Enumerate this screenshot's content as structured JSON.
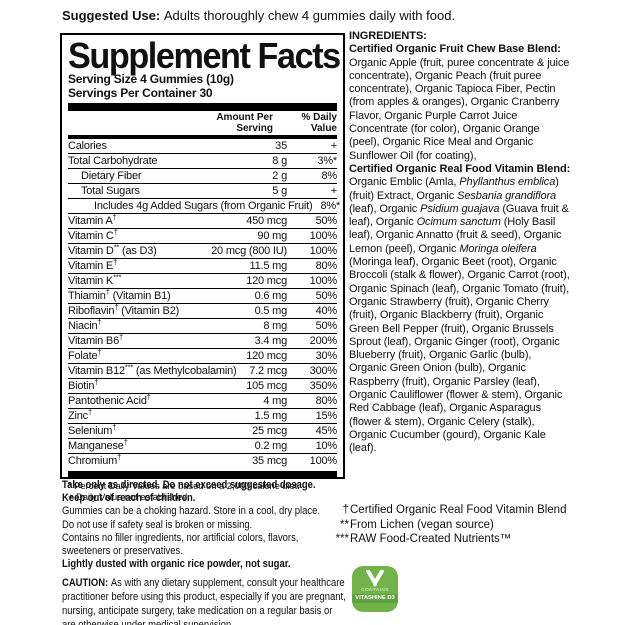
{
  "colors": {
    "text": "#111111",
    "panel_border": "#000000",
    "badge_green": "#71b348",
    "badge_band": "#5fa23d"
  },
  "suggested_use": {
    "segments": [
      {
        "t": "Suggested Use: ",
        "b": true
      },
      {
        "t": "Adults thoroughly chew 4 gummies daily with food."
      }
    ]
  },
  "panel": {
    "title": "Supplement Facts",
    "serving_size": "Serving Size 4 Gummies (10g)",
    "servings_per_container": "Servings Per Container 30",
    "col_amount_header": "Amount Per\nServing",
    "col_dv_header": "% Daily\nValue",
    "rows": [
      {
        "label": "Calories",
        "sup": "",
        "rest": "",
        "amount": "35",
        "dv": "+"
      },
      {
        "label": "Total Carbohydrate",
        "sup": "",
        "rest": "",
        "amount": "8 g",
        "dv": "3%*"
      },
      {
        "label": "Dietary Fiber",
        "sup": "",
        "rest": "",
        "indent": 1,
        "amount": "2 g",
        "dv": "8%"
      },
      {
        "label": "Total Sugars",
        "sup": "",
        "rest": "",
        "indent": 1,
        "amount": "5 g",
        "dv": "+"
      },
      {
        "label": "Includes 4g Added Sugars (from Organic Fruit)",
        "sup": "",
        "rest": "",
        "indent": 2,
        "amount": "",
        "dv": "8%*"
      },
      {
        "label": "Vitamin A",
        "sup": "†",
        "rest": "",
        "amount": "450 mcg",
        "dv": "50%"
      },
      {
        "label": "Vitamin C",
        "sup": "†",
        "rest": "",
        "amount": "90 mg",
        "dv": "100%"
      },
      {
        "label": "Vitamin D",
        "sup": "**",
        "rest": " (as D3)",
        "amount": "20 mcg (800 IU)",
        "dv": "100%"
      },
      {
        "label": "Vitamin E",
        "sup": "†",
        "rest": "",
        "amount": "11.5 mg",
        "dv": "80%"
      },
      {
        "label": "Vitamin K",
        "sup": "***",
        "rest": "",
        "amount": "120 mcg",
        "dv": "100%"
      },
      {
        "label": "Thiamin",
        "sup": "†",
        "rest": " (Vitamin B1)",
        "amount": "0.6 mg",
        "dv": "50%"
      },
      {
        "label": "Riboflavin",
        "sup": "†",
        "rest": " (Vitamin B2)",
        "amount": "0.5 mg",
        "dv": "40%"
      },
      {
        "label": "Niacin",
        "sup": "†",
        "rest": "",
        "amount": "8 mg",
        "dv": "50%"
      },
      {
        "label": "Vitamin B6",
        "sup": "†",
        "rest": "",
        "amount": "3.4 mg",
        "dv": "200%"
      },
      {
        "label": "Folate",
        "sup": "†",
        "rest": "",
        "amount": "120 mcg",
        "dv": "30%"
      },
      {
        "label": "Vitamin B12",
        "sup": "***",
        "rest": " (as Methylcobalamin)",
        "amount": "7.2 mcg",
        "dv": "300%"
      },
      {
        "label": "Biotin",
        "sup": "†",
        "rest": "",
        "amount": "105 mcg",
        "dv": "350%"
      },
      {
        "label": "Pantothenic Acid",
        "sup": "†",
        "rest": "",
        "amount": "4 mg",
        "dv": "80%"
      },
      {
        "label": "Zinc",
        "sup": "†",
        "rest": "",
        "amount": "1.5 mg",
        "dv": "15%"
      },
      {
        "label": "Selenium",
        "sup": "†",
        "rest": "",
        "amount": "25 mcg",
        "dv": "45%"
      },
      {
        "label": "Manganese",
        "sup": "†",
        "rest": "",
        "amount": "0.2 mg",
        "dv": "10%"
      },
      {
        "label": "Chromium",
        "sup": "†",
        "rest": "",
        "amount": "35 mcg",
        "dv": "100%"
      }
    ],
    "footnotes": [
      "* Percent Daily Values are based on a 2,000 calorie diet.",
      "+ Daily Value not established."
    ]
  },
  "ingredients": {
    "segments": [
      {
        "t": "INGREDIENTS:",
        "b": true
      },
      {
        "nl": true
      },
      {
        "t": "Certified Organic Fruit Chew Base Blend: ",
        "b": true
      },
      {
        "t": "Organic Apple (fruit, puree concentrate & juice concentrate), Organic Peach (fruit puree concentrate), Organic Tapioca Fiber, Pectin (from apples & oranges), Organic Cranberry Flavor, Organic Purple Carrot Juice Concentrate (for color), Organic Orange (peel), Organic Rice Meal and Organic Sunflower Oil (for coating),"
      },
      {
        "nl": true
      },
      {
        "t": "Certified Organic Real Food Vitamin Blend: ",
        "b": true
      },
      {
        "t": "Organic Emblic (Amla, "
      },
      {
        "t": "Phyllanthus emblica",
        "i": true
      },
      {
        "t": ") (fruit) Extract, Organic "
      },
      {
        "t": "Sesbania grandiflora",
        "i": true
      },
      {
        "t": " (leaf), Organic "
      },
      {
        "t": "Psidium guajava",
        "i": true
      },
      {
        "t": " (Guava fruit & leaf), Organic "
      },
      {
        "t": "Ocimum sanctum",
        "i": true
      },
      {
        "t": " (Holy Basil leaf), Organic Annatto (fruit & seed), Organic Lemon (peel), Organic "
      },
      {
        "t": "Moringa oleifera",
        "i": true
      },
      {
        "t": " (Moringa leaf), Organic Beet (root), Organic Broccoli (stalk & flower), Organic Carrot (root), Organic Spinach (leaf), Organic Tomato (fruit), Organic Strawberry (fruit), Organic Cherry (fruit), Organic Blackberry (fruit), Organic Green Bell Pepper (fruit), Organic Brussels Sprout (leaf), Organic Ginger (root), Organic Blueberry (fruit), Organic Garlic (bulb), Organic Green Onion (bulb), Organic Raspberry (fruit), Organic Parsley (leaf), Organic Cauliflower (flower & stem), Organic Red Cabbage (leaf), Organic Asparagus (flower & stem), Organic Celery (stalk), Organic Cucumber (gourd), Organic Kale (leaf)."
      }
    ]
  },
  "right_footnotes": [
    {
      "marker": "†",
      "text": "Certified Organic Real Food Vitamin Blend"
    },
    {
      "marker": "**",
      "text": "From Lichen (vegan source)"
    },
    {
      "marker": "***",
      "text": "RAW Food-Created Nutrients™"
    }
  ],
  "badge": {
    "line1": "CONTAINS",
    "line2": "VITASHINE D3"
  },
  "warnings": {
    "segments": [
      {
        "t": "Take only as directed. Do not exceed suggested dosage.",
        "b": true
      },
      {
        "nl": true
      },
      {
        "t": "Keep out of reach of children.",
        "b": true
      },
      {
        "nl": true
      },
      {
        "t": "Gummies can be a choking hazard. Store in a cool, dry place."
      },
      {
        "nl": true
      },
      {
        "t": "Do not use if safety seal is broken or missing."
      },
      {
        "nl": true
      },
      {
        "t": "Contains no filler ingredients, nor artificial colors, flavors,"
      },
      {
        "nl": true
      },
      {
        "t": "sweeteners or preservatives."
      },
      {
        "nl": true
      },
      {
        "t": "Lightly dusted with organic rice powder, not sugar.",
        "b": true
      }
    ]
  },
  "caution": {
    "segments": [
      {
        "t": "CAUTION: ",
        "b": true
      },
      {
        "t": "As with any dietary supplement, consult your healthcare practitioner before using this product, especially if you are pregnant, nursing, anticipate surgery, take medication on a regular basis or are otherwise under medical supervision."
      }
    ]
  }
}
